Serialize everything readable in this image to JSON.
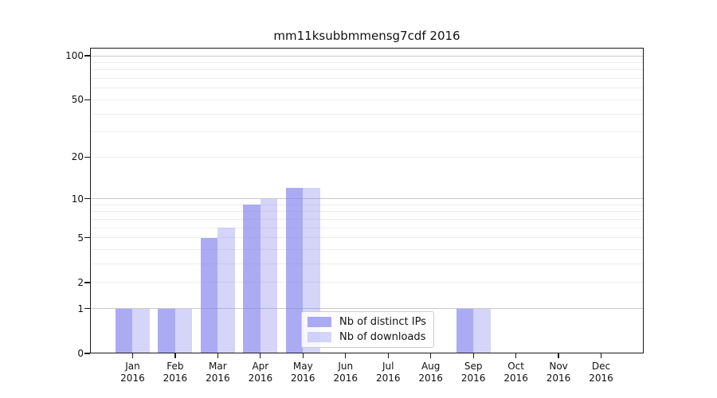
{
  "header": {
    "title": "mm11ksubbmmensg7cdf 2016"
  },
  "chart_data": {
    "type": "bar",
    "title": "mm11ksubbmmensg7cdf 2016",
    "year_label": "2016",
    "categories": [
      "Jan",
      "Feb",
      "Mar",
      "Apr",
      "May",
      "Jun",
      "Jul",
      "Aug",
      "Sep",
      "Oct",
      "Nov",
      "Dec"
    ],
    "series": [
      {
        "name": "Nb of distinct IPs",
        "key": "distinct-ips",
        "color": "#8888f0",
        "alpha": 0.7,
        "values": [
          1,
          1,
          5,
          9,
          12,
          0,
          0,
          0,
          1,
          0,
          0,
          0
        ]
      },
      {
        "name": "Nb of downloads",
        "key": "downloads",
        "color": "#8888f0",
        "alpha": 0.35,
        "values": [
          1,
          1,
          6,
          10,
          12,
          0,
          0,
          0,
          1,
          0,
          0,
          0
        ]
      }
    ],
    "yscale": "log1p",
    "ylim": [
      0,
      113.4
    ],
    "yticks": [
      0,
      1,
      2,
      5,
      10,
      20,
      50,
      100
    ],
    "ytick_labels": [
      "0",
      "1",
      "2",
      "5",
      "10",
      "20",
      "50",
      "100"
    ],
    "grid": {
      "major": [
        1,
        10,
        100
      ],
      "minor": [
        2,
        3,
        4,
        5,
        6,
        7,
        8,
        9,
        20,
        30,
        40,
        50,
        60,
        70,
        80,
        90
      ]
    },
    "legend_position": "lower center",
    "colors": {
      "major_grid": "#c9c9c9",
      "minor_grid": "#ededed",
      "frame": "#1a1a1a",
      "text": "#111111"
    }
  }
}
